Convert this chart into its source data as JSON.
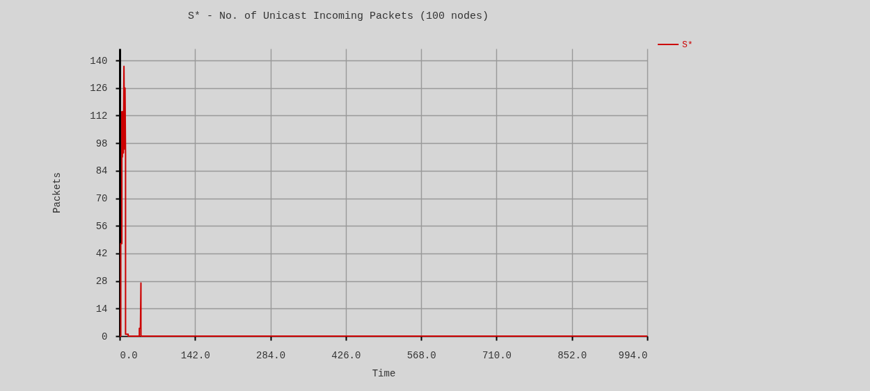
{
  "chart_data": {
    "type": "line",
    "title": "S* - No. of Unicast Incoming Packets (100 nodes)",
    "xlabel": "Time",
    "ylabel": "Packets",
    "series": [
      {
        "name": "S*",
        "color": "#cc0000",
        "x": [
          0,
          2,
          2,
          4,
          4,
          5,
          6,
          7,
          8,
          9,
          10,
          11,
          11,
          16,
          16,
          37,
          37,
          39,
          40,
          40,
          994
        ],
        "values": [
          0,
          0,
          47,
          47,
          114,
          91,
          114,
          93,
          137,
          95,
          126,
          92,
          1,
          1,
          0,
          0,
          4,
          4,
          27,
          0,
          0
        ]
      }
    ],
    "xlim": [
      0,
      994
    ],
    "ylim": [
      0,
      146
    ],
    "xticks": [
      {
        "value": 0,
        "label": "0.0"
      },
      {
        "value": 142,
        "label": "142.0"
      },
      {
        "value": 284,
        "label": "284.0"
      },
      {
        "value": 426,
        "label": "426.0"
      },
      {
        "value": 568,
        "label": "568.0"
      },
      {
        "value": 710,
        "label": "710.0"
      },
      {
        "value": 852,
        "label": "852.0"
      },
      {
        "value": 994,
        "label": "994.0"
      }
    ],
    "yticks": [
      0,
      14,
      28,
      42,
      56,
      70,
      84,
      98,
      112,
      126,
      140
    ],
    "grid": true,
    "legend": "top right",
    "line_style": "solid",
    "marker": "none"
  }
}
